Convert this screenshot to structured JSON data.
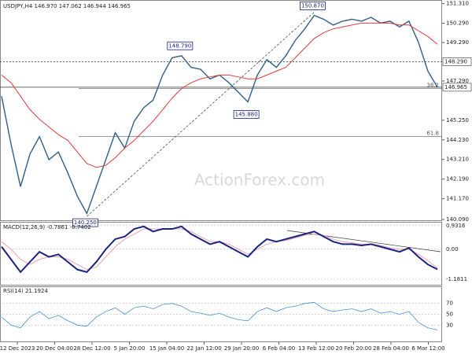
{
  "chart_data": [
    {
      "type": "price",
      "title": "USDJPY,H4 146.970 147.062 146.944 146.965",
      "series": [
        {
          "name": "Close",
          "color": "#2f5f8a",
          "values": [
            146.5,
            144.0,
            141.8,
            143.5,
            144.4,
            143.2,
            143.6,
            142.5,
            141.3,
            140.4,
            141.8,
            143.2,
            144.6,
            143.8,
            145.2,
            145.9,
            146.3,
            147.6,
            148.5,
            148.6,
            148.0,
            147.9,
            147.4,
            147.6,
            147.2,
            146.7,
            146.2,
            147.6,
            148.4,
            148.0,
            148.6,
            149.4,
            150.0,
            150.7,
            150.5,
            150.2,
            150.4,
            150.5,
            150.4,
            150.6,
            150.3,
            150.4,
            150.1,
            150.4,
            149.3,
            147.8,
            146.965
          ]
        },
        {
          "name": "MA",
          "color": "#e23b3b",
          "values": [
            147.6,
            147.2,
            146.5,
            145.8,
            145.3,
            144.9,
            144.5,
            144.2,
            143.6,
            143.0,
            142.8,
            142.9,
            143.3,
            143.8,
            144.2,
            144.7,
            145.2,
            145.8,
            146.4,
            146.9,
            147.2,
            147.4,
            147.5,
            147.6,
            147.6,
            147.5,
            147.4,
            147.4,
            147.6,
            147.8,
            148.0,
            148.5,
            149.0,
            149.5,
            149.8,
            150.0,
            150.1,
            150.2,
            150.3,
            150.3,
            150.3,
            150.3,
            150.2,
            150.2,
            149.9,
            149.6,
            149.2
          ]
        }
      ],
      "ylim": [
        140.05,
        151.5
      ],
      "yticks": [
        {
          "value": 151.31,
          "label": "151.310"
        },
        {
          "value": 150.29,
          "label": "150.290"
        },
        {
          "value": 149.29,
          "label": "149.290"
        },
        {
          "value": 147.29,
          "label": "147.290"
        },
        {
          "value": 145.25,
          "label": "145.250"
        },
        {
          "value": 144.23,
          "label": "144.230"
        },
        {
          "value": 143.21,
          "label": "143.210"
        },
        {
          "value": 142.19,
          "label": "142.190"
        },
        {
          "value": 141.17,
          "label": "141.170"
        },
        {
          "value": 140.09,
          "label": "140.090"
        }
      ],
      "levels": [
        {
          "value": 148.29,
          "label": "148.290"
        },
        {
          "value": 146.965,
          "label": "146.965"
        }
      ],
      "fib": [
        {
          "value": 146.9,
          "label": "38.2"
        },
        {
          "value": 144.4,
          "label": "61.8"
        }
      ],
      "points": [
        {
          "value": 150.87,
          "label": "150.870",
          "index": 33
        },
        {
          "value": 148.79,
          "label": "148.790",
          "index": 19
        },
        {
          "value": 145.88,
          "label": "145.880",
          "index": 26
        },
        {
          "value": 140.25,
          "label": "140.250",
          "index": 9
        }
      ],
      "watermark": "ActionForex.com",
      "x_labels": [
        "12 Dec 2023",
        "20 Dec 04:00",
        "28 Dec 12:00",
        "5 Jan 20:00",
        "15 Jan 04:00",
        "22 Jan 12:00",
        "29 Jan 20:00",
        "6 Feb 04:00",
        "13 Feb 12:00",
        "20 Feb 20:00",
        "28 Feb 04:00",
        "6 Mar 12:00"
      ]
    },
    {
      "type": "macd",
      "title": "MACD(12,26,9) -0.7861 -0.7402",
      "series": [
        {
          "name": "MACD",
          "color": "#1a237e",
          "values": [
            0.1,
            -0.4,
            -0.9,
            -0.5,
            -0.1,
            -0.3,
            -0.2,
            -0.5,
            -0.8,
            -0.9,
            -0.5,
            0.0,
            0.4,
            0.5,
            0.8,
            0.9,
            0.7,
            0.8,
            0.8,
            0.9,
            0.6,
            0.4,
            0.2,
            0.3,
            0.1,
            -0.1,
            -0.3,
            0.1,
            0.4,
            0.3,
            0.4,
            0.5,
            0.6,
            0.7,
            0.5,
            0.3,
            0.2,
            0.2,
            0.15,
            0.2,
            0.1,
            0.0,
            -0.1,
            0.05,
            -0.3,
            -0.6,
            -0.79
          ]
        },
        {
          "name": "Signal",
          "color": "#e8a0b0",
          "values": [
            0.3,
            0.0,
            -0.4,
            -0.6,
            -0.4,
            -0.3,
            -0.3,
            -0.4,
            -0.6,
            -0.8,
            -0.7,
            -0.3,
            0.1,
            0.4,
            0.6,
            0.8,
            0.8,
            0.8,
            0.8,
            0.8,
            0.7,
            0.5,
            0.3,
            0.3,
            0.2,
            0.0,
            -0.2,
            0.0,
            0.2,
            0.3,
            0.35,
            0.45,
            0.55,
            0.6,
            0.55,
            0.4,
            0.3,
            0.25,
            0.2,
            0.2,
            0.15,
            0.05,
            0.0,
            0.0,
            -0.2,
            -0.45,
            -0.74
          ]
        }
      ],
      "ylim": [
        -1.4,
        1.05
      ],
      "yticks": [
        0.9316,
        {
          "value": 0,
          "label": "0.00"
        },
        -1.1811
      ]
    },
    {
      "type": "rsi",
      "title": "RSI(14) 21.1924",
      "series": [
        {
          "name": "RSI",
          "color": "#4a90d9",
          "values": [
            45,
            30,
            25,
            45,
            55,
            42,
            48,
            38,
            30,
            28,
            45,
            55,
            62,
            50,
            62,
            65,
            60,
            68,
            70,
            65,
            55,
            52,
            48,
            52,
            45,
            40,
            38,
            55,
            62,
            55,
            62,
            65,
            70,
            72,
            60,
            55,
            58,
            60,
            55,
            60,
            52,
            55,
            50,
            55,
            35,
            25,
            21.19
          ]
        }
      ],
      "ylim": [
        0,
        100
      ],
      "yticks": [
        70,
        50,
        30
      ]
    }
  ]
}
